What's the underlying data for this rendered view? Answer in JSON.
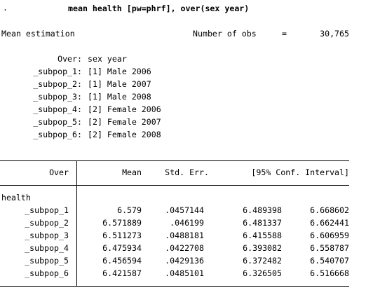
{
  "prompt": ".",
  "command": "mean health [pw=phrf], over(sex year)",
  "estimation_title": "Mean estimation",
  "nobs_label": "Number of obs",
  "nobs_eq": "=",
  "nobs_value": "30,765",
  "over_label": "Over:",
  "over_vars": "sex year",
  "subpops": [
    {
      "name": "_subpop_1:",
      "value": "[1] Male 2006"
    },
    {
      "name": "_subpop_2:",
      "value": "[1] Male 2007"
    },
    {
      "name": "_subpop_3:",
      "value": "[1] Male 2008"
    },
    {
      "name": "_subpop_4:",
      "value": "[2] Female 2006"
    },
    {
      "name": "_subpop_5:",
      "value": "[2] Female 2007"
    },
    {
      "name": "_subpop_6:",
      "value": "[2] Female 2008"
    }
  ],
  "table": {
    "headers": {
      "over": "Over",
      "mean": "Mean",
      "se": "Std. Err.",
      "ci": "[95% Conf. Interval]"
    },
    "group_label": "health",
    "rows": [
      {
        "name": "_subpop_1",
        "mean": "6.579",
        "se": ".0457144",
        "lo": "6.489398",
        "hi": "6.668602"
      },
      {
        "name": "_subpop_2",
        "mean": "6.571889",
        "se": ".046199",
        "lo": "6.481337",
        "hi": "6.662441"
      },
      {
        "name": "_subpop_3",
        "mean": "6.511273",
        "se": ".0488181",
        "lo": "6.415588",
        "hi": "6.606959"
      },
      {
        "name": "_subpop_4",
        "mean": "6.475934",
        "se": ".0422708",
        "lo": "6.393082",
        "hi": "6.558787"
      },
      {
        "name": "_subpop_5",
        "mean": "6.456594",
        "se": ".0429136",
        "lo": "6.372482",
        "hi": "6.540707"
      },
      {
        "name": "_subpop_6",
        "mean": "6.421587",
        "se": ".0485101",
        "lo": "6.326505",
        "hi": "6.516668"
      }
    ]
  }
}
